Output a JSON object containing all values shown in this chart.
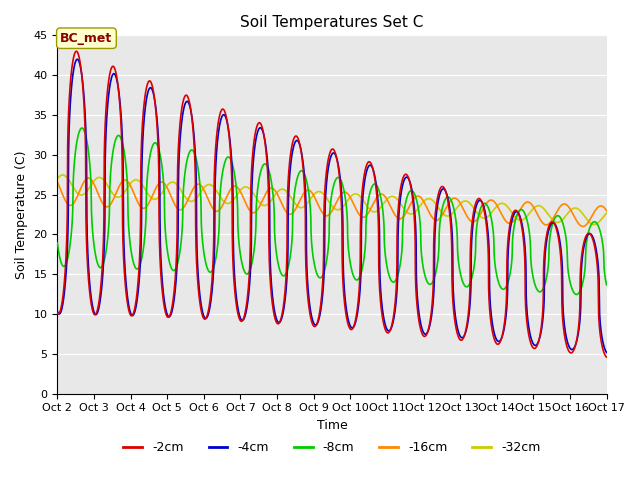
{
  "title": "Soil Temperatures Set C",
  "xlabel": "Time",
  "ylabel": "Soil Temperature (C)",
  "xlim": [
    0,
    15
  ],
  "ylim": [
    0,
    45
  ],
  "yticks": [
    0,
    5,
    10,
    15,
    20,
    25,
    30,
    35,
    40,
    45
  ],
  "xtick_labels": [
    "Oct 2",
    "Oct 3",
    "Oct 4",
    "Oct 5",
    "Oct 6",
    "Oct 7",
    "Oct 8",
    "Oct 9",
    "Oct 10",
    "Oct 11",
    "Oct 12",
    "Oct 13",
    "Oct 14",
    "Oct 15",
    "Oct 16",
    "Oct 17"
  ],
  "annotation_text": "BC_met",
  "bg_color": "#e8e8e8",
  "series": {
    "-2cm": {
      "color": "#dd0000",
      "lw": 1.2
    },
    "-4cm": {
      "color": "#0000cc",
      "lw": 1.2
    },
    "-8cm": {
      "color": "#00cc00",
      "lw": 1.2
    },
    "-16cm": {
      "color": "#ff8800",
      "lw": 1.2
    },
    "-32cm": {
      "color": "#cccc00",
      "lw": 1.2
    }
  }
}
